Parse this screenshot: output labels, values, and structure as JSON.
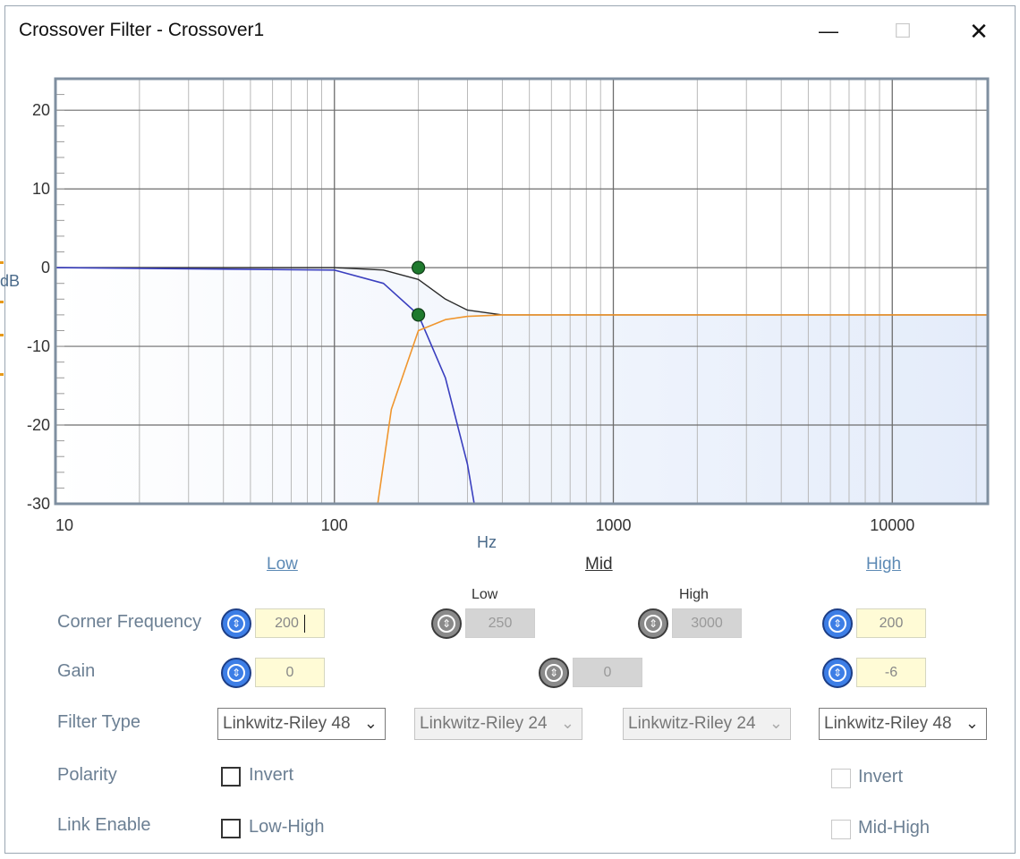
{
  "window": {
    "title": "Crossover Filter - Crossover1",
    "controls": {
      "minimize": "—",
      "maximize": "☐",
      "close": "✕"
    }
  },
  "chart_data": {
    "type": "line",
    "xscale": "log",
    "xlim": [
      10,
      22000
    ],
    "ylim": [
      -30,
      24
    ],
    "xticks": [
      "10",
      "100",
      "1000",
      "10000"
    ],
    "yticks": [
      "20",
      "10",
      "0",
      "-10",
      "-20",
      "-30"
    ],
    "xlabel": "Hz",
    "ylabel": "dB",
    "grid": true,
    "series": [
      {
        "color": "#2b2b2b",
        "x": [
          10,
          100,
          150,
          200,
          250,
          300,
          400,
          22000
        ],
        "y": [
          0,
          0,
          -0.3,
          -1.5,
          -4.0,
          -5.4,
          -6.0,
          -6
        ]
      },
      {
        "color": "#3a3fbf",
        "x": [
          10,
          100,
          150,
          200,
          250,
          300,
          317
        ],
        "y": [
          0,
          -0.3,
          -2.0,
          -6.0,
          -14.0,
          -25.0,
          -30
        ]
      },
      {
        "color": "#f0962e",
        "x": [
          143,
          160,
          200,
          250,
          300,
          400,
          22000
        ],
        "y": [
          -30,
          -18.0,
          -8.0,
          -6.6,
          -6.2,
          -6.0,
          -6
        ]
      }
    ],
    "markers": [
      {
        "x": 200,
        "y": 0,
        "color": "#1f7a2e"
      },
      {
        "x": 200,
        "y": -6,
        "color": "#1f7a2e"
      }
    ],
    "fill_color": "#e4ecfa"
  },
  "sections": {
    "low": "Low",
    "mid": "Mid",
    "high": "High",
    "mid_low": "Low",
    "mid_high": "High"
  },
  "rows": {
    "corner_frequency": "Corner Frequency",
    "gain": "Gain",
    "filter_type": "Filter Type",
    "polarity": "Polarity",
    "link_enable": "Link Enable"
  },
  "values": {
    "low_freq": "200",
    "mid_low_freq": "250",
    "mid_high_freq": "3000",
    "high_freq": "200",
    "low_gain": "0",
    "mid_gain": "0",
    "high_gain": "-6"
  },
  "filter_types": {
    "low": "Linkwitz-Riley 48",
    "mid_low": "Linkwitz-Riley 24",
    "mid_high": "Linkwitz-Riley 24",
    "high": "Linkwitz-Riley 48"
  },
  "checkboxes": {
    "low_invert": "Invert",
    "high_invert": "Invert",
    "low_high": "Low-High",
    "mid_high": "Mid-High"
  },
  "icons": {
    "knob": "up-down-adjust-icon",
    "chevron": "chevron-down-icon"
  }
}
